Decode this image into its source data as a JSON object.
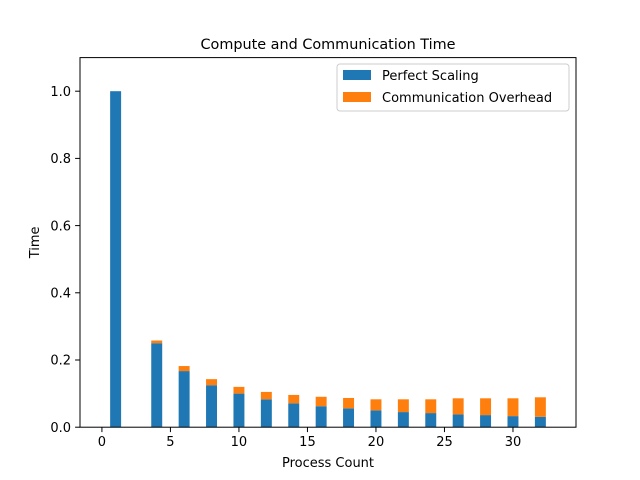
{
  "chart_data": {
    "type": "bar",
    "stacked": true,
    "title": "Compute and Communication Time",
    "xlabel": "Process Count",
    "ylabel": "Time",
    "xlim": [
      -1.6,
      34.6
    ],
    "ylim": [
      0,
      1.1
    ],
    "xticks": [
      0,
      5,
      10,
      15,
      20,
      25,
      30
    ],
    "xtick_labels": [
      "0",
      "5",
      "10",
      "15",
      "20",
      "25",
      "30"
    ],
    "yticks": [
      0.0,
      0.2,
      0.4,
      0.6,
      0.8,
      1.0
    ],
    "ytick_labels": [
      "0.0",
      "0.2",
      "0.4",
      "0.6",
      "0.8",
      "1.0"
    ],
    "bar_width": 0.8,
    "legend_position": "upper right",
    "x": [
      1,
      4,
      6,
      8,
      10,
      12,
      14,
      16,
      18,
      20,
      22,
      24,
      26,
      28,
      30,
      32
    ],
    "series": [
      {
        "name": "Perfect Scaling",
        "color": "#1f77b4",
        "values": [
          1.0,
          0.25,
          0.167,
          0.125,
          0.1,
          0.083,
          0.071,
          0.0625,
          0.056,
          0.05,
          0.045,
          0.042,
          0.038,
          0.036,
          0.033,
          0.031
        ]
      },
      {
        "name": "Communication Overhead",
        "color": "#ff7f0e",
        "values": [
          0.0,
          0.008,
          0.015,
          0.018,
          0.02,
          0.022,
          0.025,
          0.028,
          0.031,
          0.033,
          0.038,
          0.041,
          0.048,
          0.05,
          0.053,
          0.058
        ]
      }
    ]
  }
}
